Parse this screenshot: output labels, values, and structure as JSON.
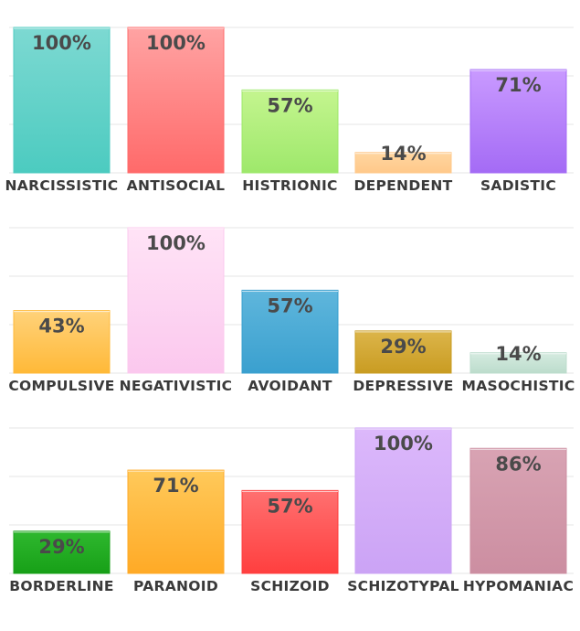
{
  "chart_data": [
    {
      "type": "bar",
      "categories": [
        "NARCISSISTIC",
        "ANTISOCIAL",
        "HISTRIONIC",
        "DEPENDENT",
        "SADISTIC"
      ],
      "values": [
        100,
        100,
        57,
        14,
        71
      ],
      "value_labels": [
        "100%",
        "100%",
        "57%",
        "14%",
        "71%"
      ],
      "colors": [
        [
          "#7dd9d2",
          "#4ccbc0"
        ],
        [
          "#ffa3a3",
          "#ff6a6a"
        ],
        [
          "#c4f58f",
          "#9ee86b"
        ],
        [
          "#ffd6a0",
          "#ffc88a"
        ],
        [
          "#c99aff",
          "#a46bf5"
        ]
      ],
      "ylim": [
        0,
        100
      ],
      "grid": true
    },
    {
      "type": "bar",
      "categories": [
        "COMPULSIVE",
        "NEGATIVISTIC",
        "AVOIDANT",
        "DEPRESSIVE",
        "MASOCHISTIC"
      ],
      "values": [
        43,
        100,
        57,
        29,
        14
      ],
      "value_labels": [
        "43%",
        "100%",
        "57%",
        "29%",
        "14%"
      ],
      "colors": [
        [
          "#ffd27a",
          "#ffb938"
        ],
        [
          "#ffe3f6",
          "#fbc8ee"
        ],
        [
          "#5fb6dc",
          "#3aa0cf"
        ],
        [
          "#dcb54a",
          "#c99c22"
        ],
        [
          "#d5ebe0",
          "#bcdccc"
        ]
      ],
      "ylim": [
        0,
        100
      ],
      "grid": true
    },
    {
      "type": "bar",
      "categories": [
        "BORDERLINE",
        "PARANOID",
        "SCHIZOID",
        "SCHIZOTYPAL",
        "HYPOMANIAC"
      ],
      "values": [
        29,
        71,
        57,
        100,
        86
      ],
      "value_labels": [
        "29%",
        "71%",
        "57%",
        "100%",
        "86%"
      ],
      "colors": [
        [
          "#2fb82f",
          "#17a017"
        ],
        [
          "#ffc95a",
          "#ffaa26"
        ],
        [
          "#ff7070",
          "#ff3f3f"
        ],
        [
          "#dcb8fb",
          "#cba3f5"
        ],
        [
          "#d8a3b3",
          "#cc8ea1"
        ]
      ],
      "ylim": [
        0,
        100
      ],
      "grid": true
    }
  ]
}
